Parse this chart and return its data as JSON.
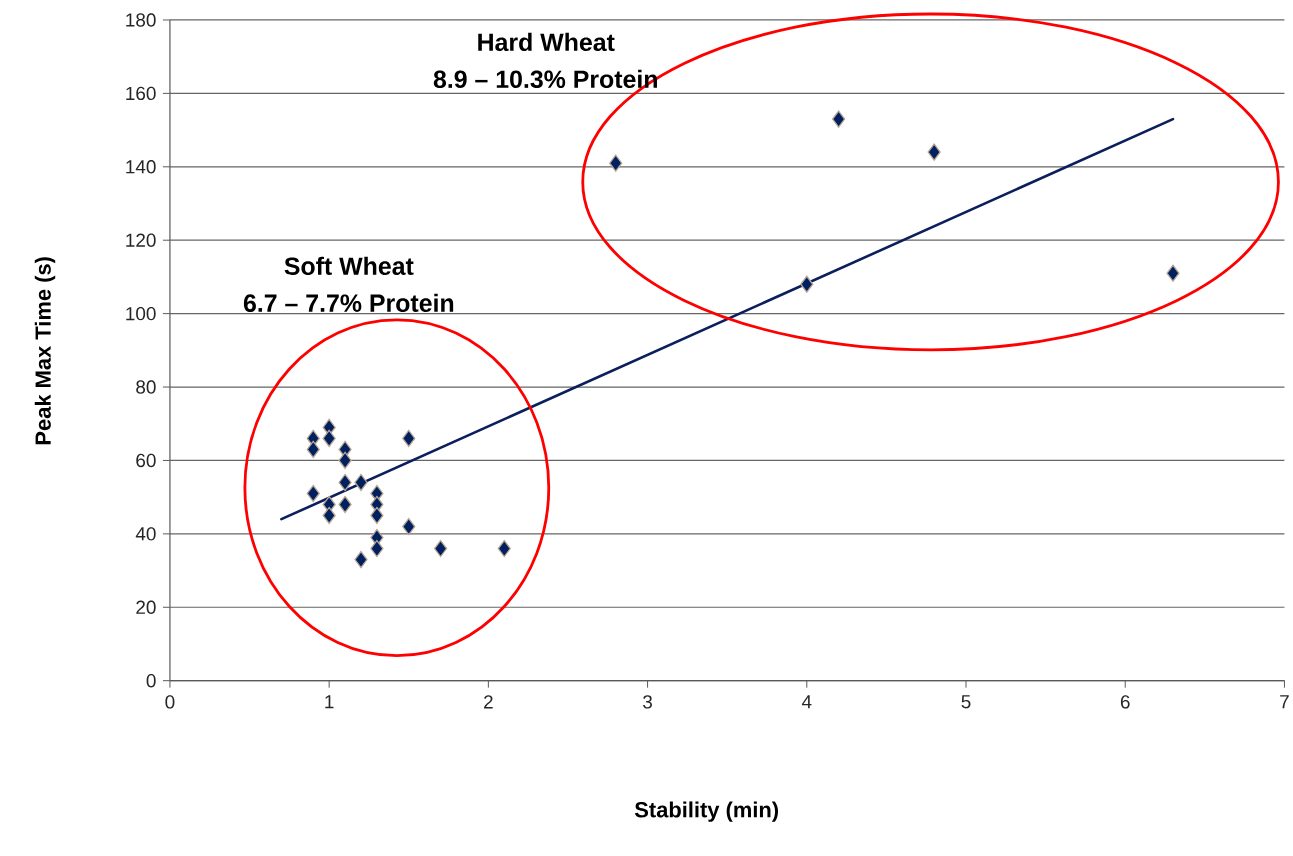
{
  "chart_data": {
    "type": "scatter",
    "xlabel": "Stability (min)",
    "ylabel": "Peak Max Time (s)",
    "annotations": [
      "Soft Wheat",
      "6.7 – 7.7% Protein",
      "Hard Wheat",
      "8.9 – 10.3% Protein"
    ],
    "series": [
      {
        "color": "#002060",
        "marker": "diamond",
        "x": [
          0.9,
          0.9,
          1.0,
          1.0,
          1.1,
          1.1,
          0.9,
          1.0,
          1.0,
          1.1,
          1.1,
          1.2,
          1.3,
          1.3,
          1.3,
          1.3,
          1.3,
          1.2,
          1.5,
          1.5,
          1.7,
          2.1,
          2.8,
          4.2,
          4.8,
          4.0,
          6.3
        ],
        "values": [
          66,
          63,
          69,
          66,
          63,
          60,
          51,
          48,
          45,
          54,
          48,
          54,
          51,
          48,
          45,
          39,
          36,
          33,
          66,
          42,
          36,
          36,
          141,
          153,
          144,
          108,
          111
        ]
      },
      {
        "type": "line",
        "color": "#0a1f5c",
        "marker": "none",
        "x": [
          0.7,
          6.3
        ],
        "values": [
          44,
          153
        ]
      }
    ],
    "xlim": [
      0,
      7
    ],
    "ylim": [
      0,
      180
    ],
    "xticks": [
      0,
      1,
      2,
      3,
      4,
      5,
      6,
      7
    ],
    "yticks": [
      0,
      20,
      40,
      60,
      80,
      100,
      120,
      140,
      160,
      180
    ],
    "grid": "y"
  }
}
